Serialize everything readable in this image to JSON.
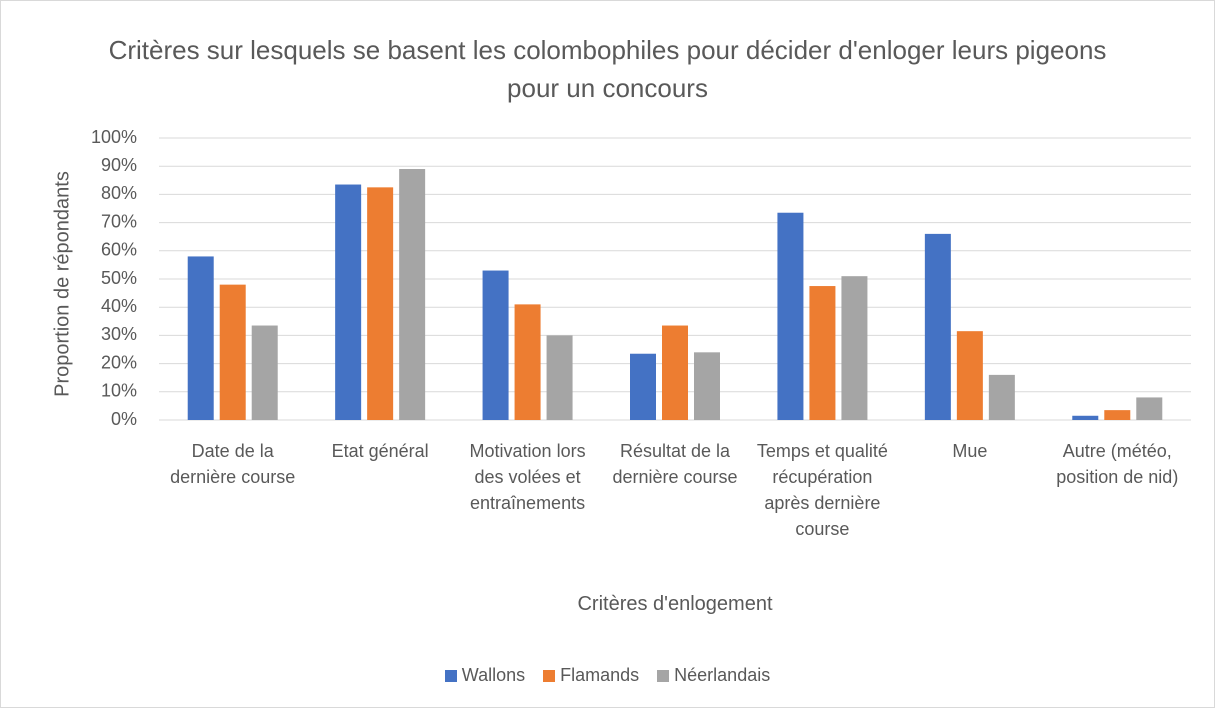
{
  "chart_data": {
    "type": "bar",
    "title": "Critères sur lesquels se basent les colombophiles pour décider d'enloger leurs pigeons pour un concours",
    "x_label": "Critères d'enlogement",
    "y_label": "Proportion de répondants",
    "categories": [
      "Date de la dernière course",
      "Etat général",
      "Motivation lors des volées et entraînements",
      "Résultat de la dernière course",
      "Temps et qualité récupération après dernière course",
      "Mue",
      "Autre (météo, position de nid)"
    ],
    "series": [
      {
        "name": "Wallons",
        "color": "#4472c4",
        "values": [
          58,
          83.5,
          53,
          23.5,
          73.5,
          66,
          1.5
        ]
      },
      {
        "name": "Flamands",
        "color": "#ed7d31",
        "values": [
          48,
          82.5,
          41,
          33.5,
          47.5,
          31.5,
          3.5
        ]
      },
      {
        "name": "Néerlandais",
        "color": "#a5a5a5",
        "values": [
          33.5,
          89,
          30,
          24,
          51,
          16,
          8
        ]
      }
    ],
    "ylim": [
      0,
      100
    ],
    "yticks": [
      {
        "value": 0,
        "label": "0%"
      },
      {
        "value": 10,
        "label": "10%"
      },
      {
        "value": 20,
        "label": "20%"
      },
      {
        "value": 30,
        "label": "30%"
      },
      {
        "value": 40,
        "label": "40%"
      },
      {
        "value": 50,
        "label": "50%"
      },
      {
        "value": 60,
        "label": "60%"
      },
      {
        "value": 70,
        "label": "70%"
      },
      {
        "value": 80,
        "label": "80%"
      },
      {
        "value": 90,
        "label": "90%"
      },
      {
        "value": 100,
        "label": "100%"
      }
    ],
    "grid": true,
    "legend": "bottom"
  }
}
